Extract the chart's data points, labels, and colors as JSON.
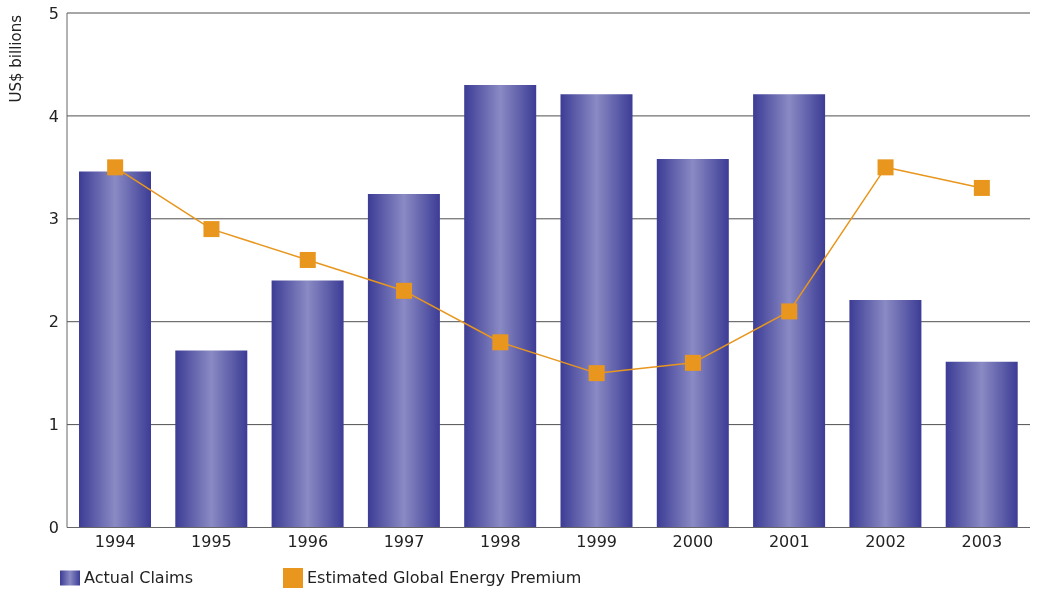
{
  "chart_data": {
    "type": "bar",
    "ylabel": "US$ billions",
    "categories": [
      "1994",
      "1995",
      "1996",
      "1997",
      "1998",
      "1999",
      "2000",
      "2001",
      "2002",
      "2003"
    ],
    "series": [
      {
        "name": "Actual Claims",
        "color": "#3c3c96",
        "values": [
          3.46,
          1.72,
          2.4,
          3.24,
          4.3,
          4.21,
          3.58,
          4.21,
          2.21,
          1.61
        ]
      },
      {
        "name": "Estimated Global Energy Premium",
        "type": "line",
        "color": "#e8961e",
        "values": [
          3.5,
          2.9,
          2.6,
          2.3,
          1.8,
          1.5,
          1.6,
          2.1,
          3.5,
          3.3
        ]
      }
    ],
    "ylim": [
      0,
      5
    ],
    "yticks": [
      0,
      1,
      2,
      3,
      4,
      5
    ],
    "grid": "y",
    "legend": "bottom left",
    "marker": "square"
  }
}
